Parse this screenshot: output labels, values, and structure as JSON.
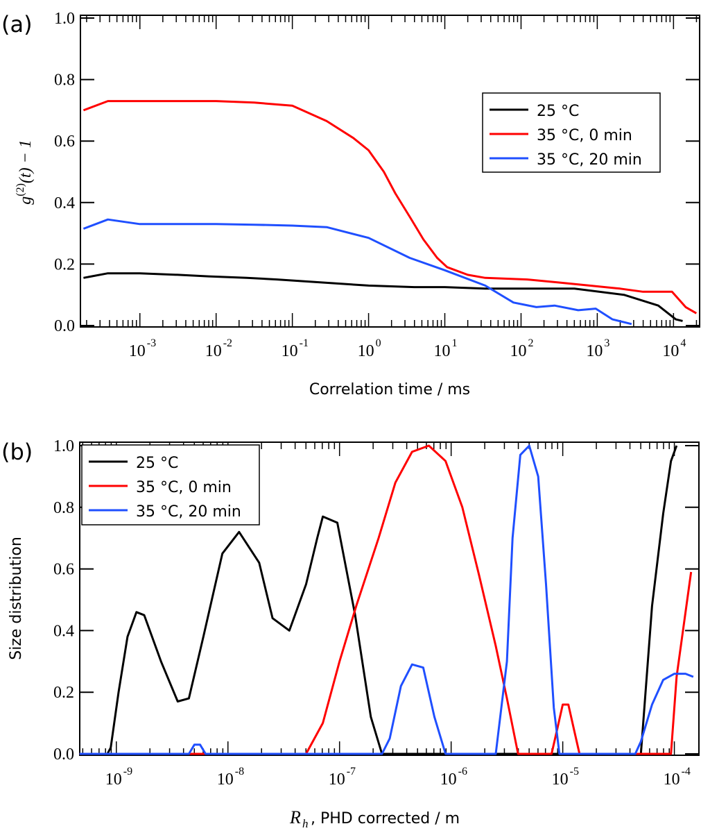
{
  "chart_data": [
    {
      "panel_label": "(a)",
      "type": "line",
      "xscale": "log",
      "xlabel": "Correlation time / ms",
      "ylabel": "g^(2)(t) − 1",
      "xlim": [
        0.000166,
        22000
      ],
      "ylim": [
        0,
        1.0
      ],
      "xticks": [
        {
          "value": 0.001,
          "base": "10",
          "exp": "-3"
        },
        {
          "value": 0.01,
          "base": "10",
          "exp": "-2"
        },
        {
          "value": 0.1,
          "base": "10",
          "exp": "-1"
        },
        {
          "value": 1,
          "base": "10",
          "exp": "0"
        },
        {
          "value": 10,
          "base": "10",
          "exp": "1"
        },
        {
          "value": 100,
          "base": "10",
          "exp": "2"
        },
        {
          "value": 1000,
          "base": "10",
          "exp": "3"
        },
        {
          "value": 10000,
          "base": "10",
          "exp": "4"
        }
      ],
      "yticks": [
        "0.0",
        "0.2",
        "0.4",
        "0.6",
        "0.8",
        "1.0"
      ],
      "legend": "top-right",
      "series": [
        {
          "name": "25 °C",
          "color": "#000000",
          "log10_x": [
            -3.74,
            -3.42,
            -3.0,
            -2.5,
            -2.1,
            -1.6,
            -1.2,
            -0.6,
            0.0,
            0.6,
            1.0,
            1.53,
            2.0,
            2.7,
            3.35,
            3.8,
            4.03,
            4.12
          ],
          "y": [
            0.155,
            0.17,
            0.17,
            0.165,
            0.16,
            0.155,
            0.15,
            0.14,
            0.13,
            0.125,
            0.125,
            0.12,
            0.12,
            0.12,
            0.1,
            0.065,
            0.02,
            0.015
          ]
        },
        {
          "name": "35 °C, 0 min",
          "color": "#ff0000",
          "log10_x": [
            -3.74,
            -3.42,
            -3.0,
            -2.5,
            -2.0,
            -1.5,
            -1.0,
            -0.55,
            -0.2,
            0.0,
            0.2,
            0.35,
            0.55,
            0.72,
            0.9,
            1.03,
            1.3,
            1.53,
            2.08,
            2.5,
            2.9,
            3.3,
            3.6,
            3.98,
            4.16,
            4.3
          ],
          "y": [
            0.7,
            0.73,
            0.73,
            0.73,
            0.73,
            0.725,
            0.715,
            0.665,
            0.61,
            0.57,
            0.5,
            0.43,
            0.35,
            0.28,
            0.22,
            0.19,
            0.165,
            0.155,
            0.15,
            0.14,
            0.13,
            0.12,
            0.11,
            0.11,
            0.06,
            0.04
          ]
        },
        {
          "name": "35 °C, 20 min",
          "color": "#1f4fff",
          "log10_x": [
            -3.74,
            -3.42,
            -3.0,
            -2.5,
            -2.0,
            -1.5,
            -1.0,
            -0.55,
            0.0,
            0.54,
            1.0,
            1.53,
            1.9,
            2.2,
            2.44,
            2.75,
            2.98,
            3.2,
            3.45
          ],
          "y": [
            0.315,
            0.345,
            0.33,
            0.33,
            0.33,
            0.328,
            0.325,
            0.32,
            0.285,
            0.22,
            0.18,
            0.13,
            0.075,
            0.06,
            0.065,
            0.05,
            0.055,
            0.02,
            0.005
          ]
        }
      ]
    },
    {
      "panel_label": "(b)",
      "type": "line",
      "xscale": "log",
      "xlabel_symbol": "R",
      "xlabel_subscript": "h",
      "xlabel": ", PHD corrected / m",
      "ylabel": "Size distribution",
      "xlim": [
        4.7e-10,
        0.000166
      ],
      "ylim": [
        0,
        1.0
      ],
      "xticks": [
        {
          "value": 1e-09,
          "base": "10",
          "exp": "-9"
        },
        {
          "value": 1e-08,
          "base": "10",
          "exp": "-8"
        },
        {
          "value": 1e-07,
          "base": "10",
          "exp": "-7"
        },
        {
          "value": 1e-06,
          "base": "10",
          "exp": "-6"
        },
        {
          "value": 1e-05,
          "base": "10",
          "exp": "-5"
        },
        {
          "value": 0.0001,
          "base": "10",
          "exp": "-4"
        }
      ],
      "yticks": [
        "0.0",
        "0.2",
        "0.4",
        "0.6",
        "0.8",
        "1.0"
      ],
      "legend": "top-left",
      "series": [
        {
          "name": "25 °C",
          "color": "#000000",
          "log10_x": [
            -9.33,
            -9.08,
            -9.05,
            -8.98,
            -8.9,
            -8.82,
            -8.75,
            -8.6,
            -8.45,
            -8.35,
            -8.22,
            -8.05,
            -7.9,
            -7.72,
            -7.6,
            -7.45,
            -7.3,
            -7.2,
            -7.15,
            -7.02,
            -6.86,
            -6.72,
            -6.62,
            -6.55,
            -6.52,
            -6.4,
            -4.5,
            -4.3,
            -4.2,
            -4.1,
            -4.03,
            -3.98
          ],
          "y": [
            0.0,
            0.0,
            0.02,
            0.2,
            0.38,
            0.46,
            0.45,
            0.3,
            0.17,
            0.18,
            0.38,
            0.65,
            0.72,
            0.62,
            0.44,
            0.4,
            0.55,
            0.7,
            0.77,
            0.75,
            0.45,
            0.12,
            0.0,
            0.0,
            0.0,
            0.0,
            0.0,
            0.0,
            0.48,
            0.78,
            0.95,
            1.0
          ]
        },
        {
          "name": "35 °C, 0 min",
          "color": "#ff0000",
          "log10_x": [
            -9.33,
            -7.3,
            -7.15,
            -7.0,
            -6.85,
            -6.65,
            -6.5,
            -6.35,
            -6.2,
            -6.05,
            -5.9,
            -5.75,
            -5.6,
            -5.5,
            -5.4,
            -5.25,
            -5.1,
            -5.05,
            -5.0,
            -4.95,
            -4.9,
            -4.85,
            -4.8,
            -4.6,
            -4.1,
            -4.03,
            -3.98,
            -3.85
          ],
          "y": [
            0.0,
            0.0,
            0.1,
            0.3,
            0.48,
            0.7,
            0.88,
            0.98,
            1.0,
            0.95,
            0.8,
            0.58,
            0.35,
            0.18,
            0.0,
            0.0,
            0.0,
            0.08,
            0.16,
            0.16,
            0.08,
            0.0,
            0.0,
            0.0,
            0.0,
            0.0,
            0.25,
            0.59
          ]
        },
        {
          "name": "35 °C, 20 min",
          "color": "#1f4fff",
          "log10_x": [
            -9.33,
            -8.35,
            -8.3,
            -8.25,
            -8.2,
            -6.62,
            -6.55,
            -6.45,
            -6.35,
            -6.25,
            -6.15,
            -6.05,
            -5.95,
            -5.6,
            -5.5,
            -5.45,
            -5.38,
            -5.3,
            -5.22,
            -5.15,
            -5.08,
            -5.03,
            -4.35,
            -4.3,
            -4.2,
            -4.1,
            -4.0,
            -3.9,
            -3.83
          ],
          "y": [
            0.0,
            0.0,
            0.03,
            0.03,
            0.0,
            0.0,
            0.05,
            0.22,
            0.29,
            0.28,
            0.12,
            0.0,
            0.0,
            0.0,
            0.3,
            0.7,
            0.97,
            1.0,
            0.9,
            0.55,
            0.15,
            0.0,
            0.0,
            0.04,
            0.16,
            0.24,
            0.26,
            0.26,
            0.25
          ]
        }
      ]
    }
  ]
}
